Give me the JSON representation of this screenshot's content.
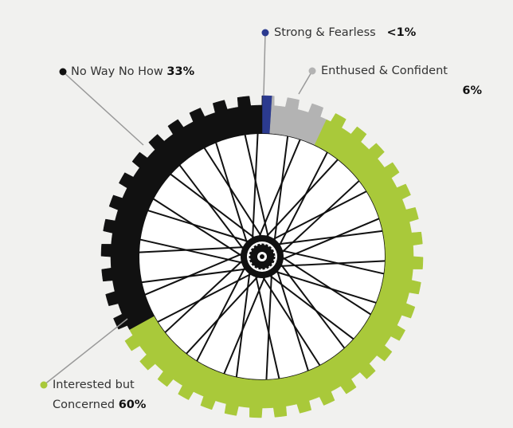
{
  "chart_data": {
    "type": "pie",
    "categories": [
      "Strong & Fearless",
      "Enthused & Confident",
      "Interested but Concerned",
      "No Way No How"
    ],
    "values": [
      1,
      6,
      60,
      33
    ],
    "value_labels": [
      "<1%",
      "6%",
      "60%",
      "33%"
    ],
    "colors": [
      "#2b3a8f",
      "#b3b3b3",
      "#a9c93a",
      "#111111"
    ]
  }
}
